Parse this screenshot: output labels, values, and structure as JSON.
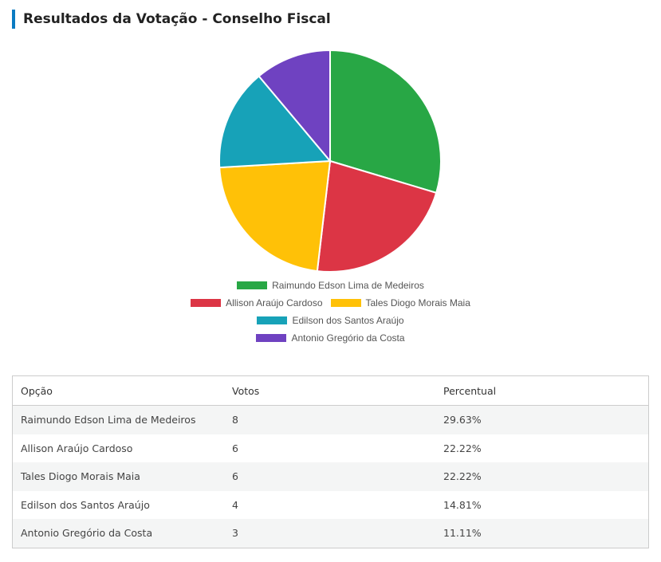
{
  "title": "Resultados da Votação - Conselho Fiscal",
  "chart_data": {
    "type": "pie",
    "title": "Resultados da Votação - Conselho Fiscal",
    "categories": [
      "Raimundo Edson Lima de Medeiros",
      "Allison Araújo Cardoso",
      "Tales Diogo Morais Maia",
      "Edilson dos Santos Araújo",
      "Antonio Gregório da Costa"
    ],
    "values": [
      8,
      6,
      6,
      4,
      3
    ],
    "colors": [
      "#28a745",
      "#dc3545",
      "#ffc107",
      "#17a2b8",
      "#6f42c1"
    ],
    "legend_position": "bottom"
  },
  "table": {
    "headers": [
      "Opção",
      "Votos",
      "Percentual"
    ],
    "rows": [
      [
        "Raimundo Edson Lima de Medeiros",
        "8",
        "29.63%"
      ],
      [
        "Allison Araújo Cardoso",
        "6",
        "22.22%"
      ],
      [
        "Tales Diogo Morais Maia",
        "6",
        "22.22%"
      ],
      [
        "Edilson dos Santos Araújo",
        "4",
        "14.81%"
      ],
      [
        "Antonio Gregório da Costa",
        "3",
        "11.11%"
      ]
    ]
  }
}
